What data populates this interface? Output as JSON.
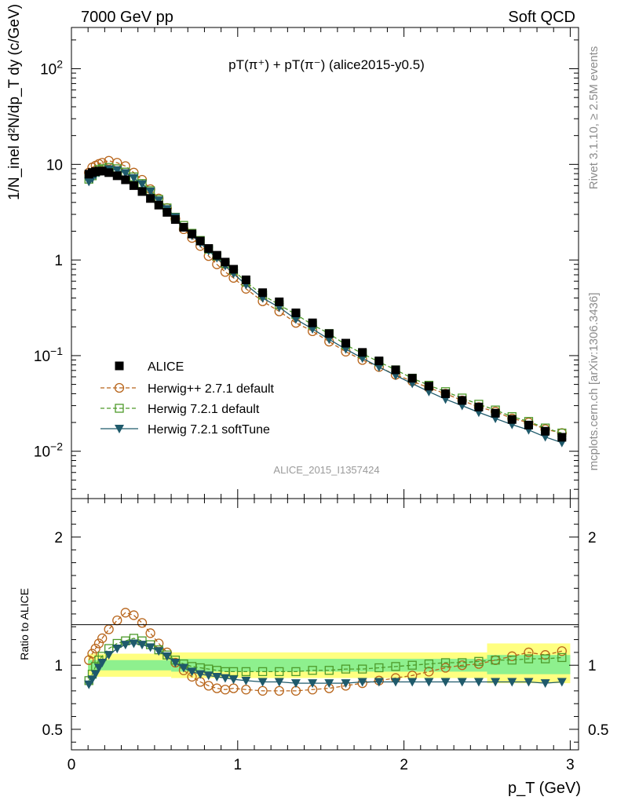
{
  "header": {
    "left": "7000 GeV pp",
    "right": "Soft QCD"
  },
  "side_text": {
    "rivet": "Rivet 3.1.10, ≥ 2.5M events",
    "mcplots": "mcplots.cern.ch [arXiv:1306.3436]"
  },
  "watermark": "ALICE_2015_I1357424",
  "colors": {
    "alice": "#000000",
    "herwigpp": "#b8651b",
    "herwig721": "#4d9a2a",
    "softtune": "#1f5a6b",
    "band_outer": "#ffff80",
    "band_inner": "#8ef08e"
  },
  "chart_data": [
    {
      "type": "scatter",
      "title": "pT(π⁺) + pT(π⁻) (alice2015-y0.5)",
      "xlabel": "p_T (GeV)",
      "ylabel": "1/N_inel d²N/dp_T dy (c/GeV)",
      "yscale": "log",
      "xlim": [
        0,
        3.05
      ],
      "ylim": [
        0.0032,
        270
      ],
      "y_tick_labels": [
        "10^-2",
        "10^-1",
        "1",
        "10",
        "10^2"
      ],
      "legend_position": "center-left",
      "x": [
        0.105,
        0.125,
        0.145,
        0.165,
        0.185,
        0.225,
        0.275,
        0.325,
        0.375,
        0.425,
        0.475,
        0.525,
        0.575,
        0.625,
        0.675,
        0.725,
        0.775,
        0.825,
        0.875,
        0.925,
        0.975,
        1.05,
        1.15,
        1.25,
        1.35,
        1.45,
        1.55,
        1.65,
        1.75,
        1.85,
        1.95,
        2.05,
        2.15,
        2.25,
        2.35,
        2.45,
        2.55,
        2.65,
        2.75,
        2.85,
        2.95
      ],
      "series": [
        {
          "name": "ALICE",
          "marker": "filled-square",
          "values": [
            7.9,
            8.2,
            8.4,
            8.5,
            8.5,
            8.2,
            7.6,
            6.9,
            6.0,
            5.2,
            4.4,
            3.75,
            3.15,
            2.65,
            2.2,
            1.87,
            1.58,
            1.32,
            1.12,
            0.95,
            0.8,
            0.62,
            0.455,
            0.365,
            0.28,
            0.22,
            0.17,
            0.135,
            0.108,
            0.088,
            0.071,
            0.058,
            0.048,
            0.04,
            0.034,
            0.029,
            0.025,
            0.0215,
            0.0188,
            0.0162,
            0.014
          ]
        },
        {
          "name": "Herwig++ 2.7.1 default",
          "marker": "open-circle",
          "line": "dashed",
          "values": [
            8.2,
            9.3,
            9.7,
            10.1,
            10.4,
            10.9,
            10.4,
            9.6,
            8.2,
            6.9,
            5.5,
            4.4,
            3.5,
            2.7,
            2.1,
            1.7,
            1.4,
            1.1,
            0.9,
            0.75,
            0.65,
            0.5,
            0.37,
            0.29,
            0.22,
            0.18,
            0.14,
            0.11,
            0.09,
            0.076,
            0.063,
            0.054,
            0.046,
            0.04,
            0.034,
            0.029,
            0.026,
            0.022,
            0.02,
            0.017,
            0.0155
          ]
        },
        {
          "name": "Herwig 7.2.1 default",
          "marker": "open-square",
          "line": "dashed",
          "values": [
            7.0,
            7.6,
            8.3,
            8.8,
            9.0,
            9.3,
            9.0,
            8.3,
            7.4,
            6.3,
            5.3,
            4.3,
            3.5,
            2.8,
            2.3,
            1.9,
            1.6,
            1.3,
            1.1,
            0.92,
            0.78,
            0.59,
            0.43,
            0.34,
            0.27,
            0.21,
            0.17,
            0.13,
            0.105,
            0.086,
            0.071,
            0.058,
            0.049,
            0.042,
            0.036,
            0.031,
            0.027,
            0.023,
            0.0205,
            0.0175,
            0.0155
          ]
        },
        {
          "name": "Herwig 7.2.1 softTune",
          "marker": "filled-triangle-down",
          "line": "solid",
          "values": [
            6.6,
            7.1,
            7.8,
            8.2,
            8.6,
            8.9,
            8.7,
            8.1,
            7.2,
            6.2,
            5.2,
            4.2,
            3.4,
            2.8,
            2.2,
            1.8,
            1.5,
            1.25,
            1.05,
            0.87,
            0.72,
            0.55,
            0.4,
            0.32,
            0.24,
            0.19,
            0.148,
            0.117,
            0.094,
            0.076,
            0.062,
            0.051,
            0.042,
            0.035,
            0.03,
            0.0255,
            0.022,
            0.019,
            0.0167,
            0.0141,
            0.0123
          ]
        }
      ]
    },
    {
      "type": "scatter",
      "xlabel": "p_T (GeV)",
      "ylabel": "Ratio to ALICE",
      "xlim": [
        0,
        3.05
      ],
      "ylim": [
        0.34,
        2.3
      ],
      "y_tick_labels": [
        "0.5",
        "1",
        "2"
      ],
      "x_tick_labels": [
        "0",
        "1",
        "2",
        "3"
      ],
      "x": [
        0.105,
        0.125,
        0.145,
        0.165,
        0.185,
        0.225,
        0.275,
        0.325,
        0.375,
        0.425,
        0.475,
        0.525,
        0.575,
        0.625,
        0.675,
        0.725,
        0.775,
        0.825,
        0.875,
        0.925,
        0.975,
        1.05,
        1.15,
        1.25,
        1.35,
        1.45,
        1.55,
        1.65,
        1.75,
        1.85,
        1.95,
        2.05,
        2.15,
        2.25,
        2.35,
        2.45,
        2.55,
        2.65,
        2.75,
        2.85,
        2.95
      ],
      "series": [
        {
          "name": "Herwig++ 2.7.1 default",
          "values": [
            1.04,
            1.09,
            1.13,
            1.17,
            1.21,
            1.28,
            1.35,
            1.41,
            1.39,
            1.33,
            1.25,
            1.17,
            1.1,
            1.02,
            0.96,
            0.91,
            0.87,
            0.84,
            0.82,
            0.81,
            0.82,
            0.81,
            0.8,
            0.8,
            0.8,
            0.81,
            0.82,
            0.84,
            0.86,
            0.88,
            0.9,
            0.92,
            0.95,
            0.98,
            1.0,
            1.01,
            1.04,
            1.07,
            1.1,
            1.08,
            1.11
          ]
        },
        {
          "name": "Herwig 7.2.1 default",
          "values": [
            0.88,
            0.93,
            0.99,
            1.04,
            1.07,
            1.13,
            1.17,
            1.19,
            1.21,
            1.19,
            1.16,
            1.12,
            1.08,
            1.04,
            1.01,
            0.99,
            0.98,
            0.97,
            0.96,
            0.95,
            0.95,
            0.95,
            0.95,
            0.95,
            0.95,
            0.96,
            0.96,
            0.97,
            0.97,
            0.98,
            0.99,
            1.0,
            1.01,
            1.02,
            1.02,
            1.03,
            1.04,
            1.04,
            1.05,
            1.05,
            1.06
          ]
        },
        {
          "name": "Herwig 7.2.1 softTune",
          "values": [
            0.85,
            0.89,
            0.93,
            0.98,
            1.02,
            1.08,
            1.13,
            1.16,
            1.17,
            1.16,
            1.14,
            1.11,
            1.07,
            1.02,
            0.98,
            0.95,
            0.93,
            0.92,
            0.91,
            0.9,
            0.89,
            0.88,
            0.87,
            0.87,
            0.86,
            0.86,
            0.86,
            0.86,
            0.87,
            0.87,
            0.87,
            0.87,
            0.87,
            0.87,
            0.87,
            0.87,
            0.87,
            0.87,
            0.87,
            0.86,
            0.87
          ]
        }
      ],
      "bands": [
        {
          "x_range": [
            0.1,
            0.6
          ],
          "inner": [
            0.96,
            1.04
          ],
          "outer": [
            0.91,
            1.09
          ]
        },
        {
          "x_range": [
            0.6,
            2.5
          ],
          "inner": [
            0.95,
            1.05
          ],
          "outer": [
            0.9,
            1.1
          ]
        },
        {
          "x_range": [
            2.5,
            3.0
          ],
          "inner": [
            0.93,
            1.08
          ],
          "outer": [
            0.86,
            1.17
          ]
        }
      ]
    }
  ]
}
